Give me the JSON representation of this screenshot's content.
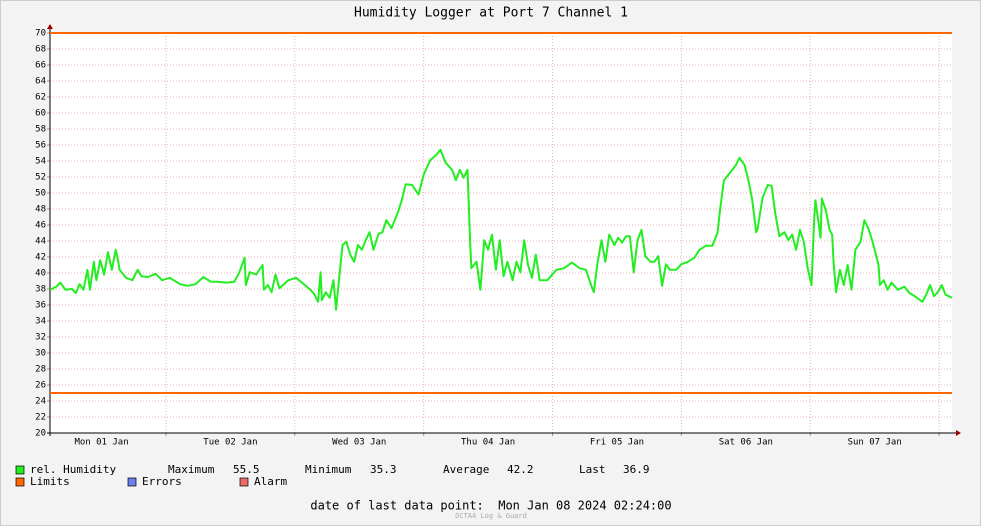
{
  "chart_data": {
    "type": "line",
    "title": "Humidity Logger at Port 7 Channel 1",
    "xlim": [
      1.1,
      8.1
    ],
    "xticks": [
      {
        "value": 1.5,
        "label": "Mon 01 Jan"
      },
      {
        "value": 2.5,
        "label": "Tue 02 Jan"
      },
      {
        "value": 3.5,
        "label": "Wed 03 Jan"
      },
      {
        "value": 4.5,
        "label": "Thu 04 Jan"
      },
      {
        "value": 5.5,
        "label": "Fri 05 Jan"
      },
      {
        "value": 6.5,
        "label": "Sat 06 Jan"
      },
      {
        "value": 7.5,
        "label": "Sun 07 Jan"
      }
    ],
    "xgrid": [
      2,
      3,
      4,
      5,
      6,
      7,
      8
    ],
    "ylim": [
      20,
      70
    ],
    "yticks": [
      20,
      22,
      24,
      26,
      28,
      30,
      32,
      34,
      36,
      38,
      40,
      42,
      44,
      46,
      48,
      50,
      52,
      54,
      56,
      58,
      60,
      62,
      64,
      66,
      68,
      70
    ],
    "grid": true,
    "x": [
      1.1,
      1.15,
      1.18,
      1.22,
      1.27,
      1.3,
      1.33,
      1.36,
      1.39,
      1.41,
      1.44,
      1.46,
      1.49,
      1.52,
      1.55,
      1.58,
      1.61,
      1.63,
      1.64,
      1.69,
      1.74,
      1.78,
      1.81,
      1.86,
      1.92,
      1.97,
      2.03,
      2.11,
      2.17,
      2.23,
      2.29,
      2.35,
      2.4,
      2.47,
      2.53,
      2.57,
      2.61,
      2.62,
      2.65,
      2.7,
      2.75,
      2.76,
      2.79,
      2.82,
      2.85,
      2.88,
      2.95,
      3.01,
      3.07,
      3.12,
      3.15,
      3.18,
      3.2,
      3.21,
      3.24,
      3.27,
      3.3,
      3.32,
      3.33,
      3.37,
      3.4,
      3.43,
      3.46,
      3.49,
      3.52,
      3.55,
      3.58,
      3.61,
      3.65,
      3.68,
      3.71,
      3.75,
      3.8,
      3.83,
      3.86,
      3.91,
      3.96,
      4.0,
      4.05,
      4.1,
      4.13,
      4.17,
      4.22,
      4.25,
      4.28,
      4.31,
      4.34,
      4.36,
      4.37,
      4.41,
      4.44,
      4.47,
      4.5,
      4.53,
      4.56,
      4.59,
      4.62,
      4.65,
      4.69,
      4.72,
      4.75,
      4.78,
      4.81,
      4.84,
      4.87,
      4.9,
      4.96,
      5.03,
      5.09,
      5.15,
      5.21,
      5.26,
      5.29,
      5.32,
      5.35,
      5.38,
      5.41,
      5.44,
      5.48,
      5.51,
      5.54,
      5.57,
      5.6,
      5.63,
      5.66,
      5.69,
      5.72,
      5.76,
      5.79,
      5.82,
      5.85,
      5.88,
      5.91,
      5.96,
      6.0,
      6.05,
      6.1,
      6.14,
      6.19,
      6.24,
      6.28,
      6.3,
      6.33,
      6.38,
      6.42,
      6.45,
      6.49,
      6.52,
      6.55,
      6.58,
      6.59,
      6.63,
      6.67,
      6.7,
      6.73,
      6.76,
      6.8,
      6.83,
      6.86,
      6.89,
      6.92,
      6.95,
      6.98,
      7.01,
      7.03,
      7.04,
      7.08,
      7.09,
      7.12,
      7.15,
      7.17,
      7.18,
      7.2,
      7.23,
      7.26,
      7.29,
      7.32,
      7.35,
      7.39,
      7.42,
      7.45,
      7.48,
      7.51,
      7.53,
      7.54,
      7.57,
      7.6,
      7.63,
      7.68,
      7.73,
      7.77,
      7.82,
      7.87,
      7.9,
      7.93,
      7.96,
      7.99,
      8.02,
      8.05,
      8.1
    ],
    "series": [
      {
        "name": "rel. Humidity",
        "color": "#22ee22",
        "values": [
          37.9,
          38.3,
          38.8,
          37.9,
          38.0,
          37.5,
          38.6,
          37.9,
          40.4,
          37.9,
          41.4,
          39.1,
          41.6,
          39.8,
          42.6,
          40.4,
          42.9,
          41.4,
          40.4,
          39.4,
          39.1,
          40.4,
          39.6,
          39.5,
          39.9,
          39.1,
          39.4,
          38.6,
          38.4,
          38.6,
          39.5,
          38.9,
          38.9,
          38.8,
          38.9,
          40.1,
          41.9,
          38.5,
          40.1,
          39.8,
          41.0,
          37.9,
          38.5,
          37.6,
          39.8,
          38.1,
          39.1,
          39.4,
          38.6,
          37.9,
          37.4,
          36.4,
          40.1,
          36.6,
          37.6,
          36.9,
          39.1,
          35.4,
          37.1,
          43.5,
          43.9,
          42.3,
          41.4,
          43.5,
          42.9,
          44.1,
          45.1,
          42.9,
          44.9,
          45.1,
          46.6,
          45.6,
          47.6,
          49.1,
          51.1,
          51.0,
          49.8,
          52.3,
          54.1,
          54.8,
          55.4,
          53.8,
          52.9,
          51.6,
          52.9,
          51.9,
          52.9,
          44.1,
          40.6,
          41.4,
          37.9,
          44.1,
          42.9,
          44.8,
          40.4,
          44.1,
          39.6,
          41.4,
          39.1,
          41.4,
          40.1,
          44.1,
          41.0,
          39.4,
          42.3,
          39.1,
          39.1,
          40.4,
          40.6,
          41.3,
          40.6,
          40.4,
          38.9,
          37.6,
          41.4,
          44.1,
          41.4,
          44.8,
          43.5,
          44.4,
          43.8,
          44.6,
          44.6,
          40.1,
          44.1,
          45.4,
          42.1,
          41.4,
          41.4,
          42.1,
          38.4,
          41.1,
          40.4,
          40.4,
          41.1,
          41.4,
          41.9,
          42.9,
          43.4,
          43.4,
          45.0,
          47.9,
          51.6,
          52.6,
          53.4,
          54.4,
          53.5,
          51.6,
          49.1,
          45.1,
          45.4,
          49.4,
          51.0,
          50.9,
          47.3,
          44.6,
          45.1,
          44.1,
          44.8,
          42.9,
          45.4,
          43.9,
          40.6,
          38.5,
          46.6,
          49.1,
          44.4,
          49.3,
          47.9,
          45.4,
          44.8,
          41.6,
          37.6,
          40.4,
          38.5,
          41.0,
          37.9,
          42.9,
          43.9,
          46.6,
          45.6,
          44.1,
          42.3,
          41.0,
          38.5,
          39.1,
          37.9,
          38.8,
          37.9,
          38.3,
          37.5,
          37.0,
          36.4,
          37.3,
          38.5,
          37.1,
          37.6,
          38.5,
          37.3,
          36.9
        ]
      }
    ],
    "limits": {
      "name": "Limits",
      "color": "#ff6600",
      "values": [
        25,
        70
      ]
    },
    "extra_legend": [
      {
        "name": "Errors",
        "color": "#6a80ee"
      },
      {
        "name": "Alarm",
        "color": "#ee6a6a"
      }
    ],
    "stats": [
      {
        "label": "Maximum",
        "value": 55.5
      },
      {
        "label": "Minimum",
        "value": 35.3
      },
      {
        "label": "Average",
        "value": 42.2
      },
      {
        "label": "Last",
        "value": 36.9
      }
    ],
    "footer": "date of last data point:  Mon Jan 08 2024 02:24:00",
    "watermark": "OCTA4 Log & Guard"
  }
}
